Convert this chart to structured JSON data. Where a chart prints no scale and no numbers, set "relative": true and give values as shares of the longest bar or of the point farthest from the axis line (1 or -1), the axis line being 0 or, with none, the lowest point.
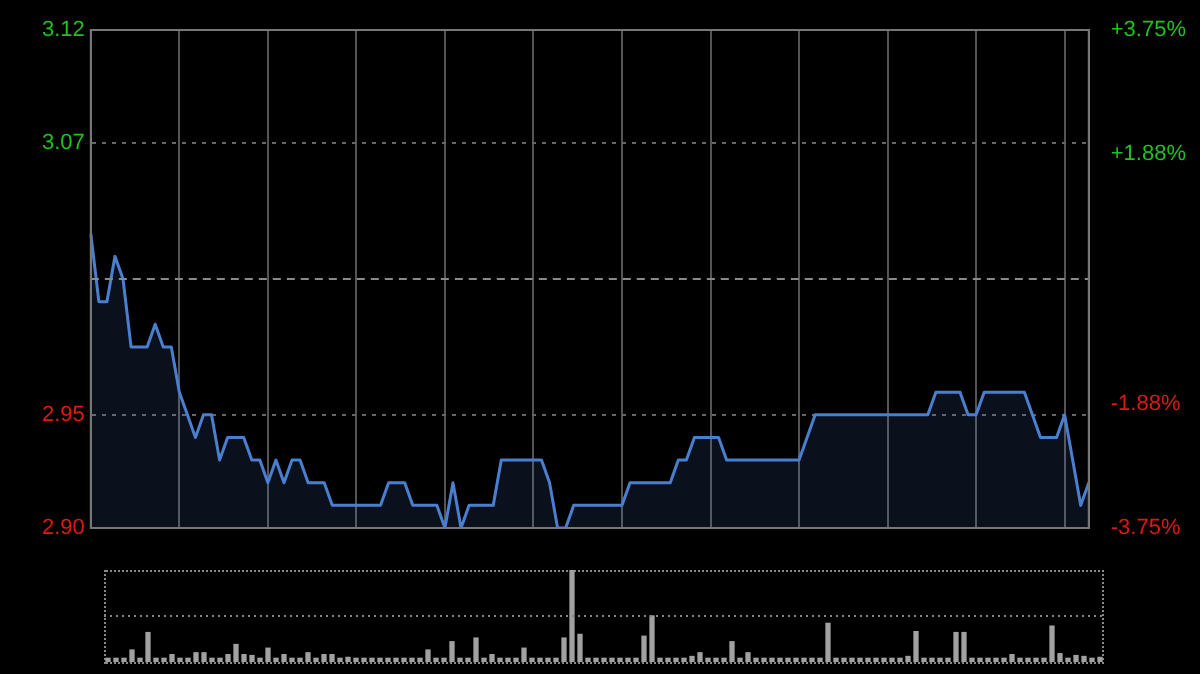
{
  "chart_data": [
    {
      "type": "area",
      "categories": [
        null,
        null,
        null,
        null,
        null,
        null,
        null,
        null,
        null,
        null,
        null,
        null,
        null,
        null,
        null,
        null,
        null,
        null,
        null,
        null,
        null,
        null,
        null,
        null,
        null,
        null,
        null,
        null,
        null,
        null,
        null,
        null,
        null,
        null,
        null,
        null,
        null,
        null,
        null,
        null,
        null,
        null,
        null,
        null,
        null,
        null,
        null,
        null,
        null,
        null,
        null,
        null,
        null,
        null,
        null,
        null,
        null,
        null,
        null,
        null,
        null,
        null,
        null,
        null,
        null,
        null,
        null,
        null,
        null,
        null,
        null,
        null,
        null,
        null,
        null,
        null,
        null,
        null,
        null,
        null,
        null,
        null,
        null,
        null,
        null,
        null,
        null,
        null,
        null,
        null,
        null,
        null,
        null,
        null,
        null,
        null,
        null,
        null,
        null,
        null,
        null,
        null,
        null,
        null,
        null,
        null,
        null,
        null,
        null,
        null,
        null,
        null,
        null,
        null,
        null,
        null,
        null,
        null,
        null,
        null,
        null,
        null,
        null,
        null,
        null
      ],
      "series": [
        {
          "color": "#4a7fd0",
          "values": [
            3.03,
            3.0,
            3.0,
            3.02,
            3.01,
            2.98,
            2.98,
            2.98,
            2.99,
            2.98,
            2.98,
            2.96,
            2.95,
            2.94,
            2.95,
            2.95,
            2.93,
            2.94,
            2.94,
            2.94,
            2.93,
            2.93,
            2.92,
            2.93,
            2.92,
            2.93,
            2.93,
            2.92,
            2.92,
            2.92,
            2.91,
            2.91,
            2.91,
            2.91,
            2.91,
            2.91,
            2.91,
            2.92,
            2.92,
            2.92,
            2.91,
            2.91,
            2.91,
            2.91,
            2.9,
            2.92,
            2.9,
            2.91,
            2.91,
            2.91,
            2.91,
            2.93,
            2.93,
            2.93,
            2.93,
            2.93,
            2.93,
            2.92,
            2.9,
            2.9,
            2.91,
            2.91,
            2.91,
            2.91,
            2.91,
            2.91,
            2.91,
            2.92,
            2.92,
            2.92,
            2.92,
            2.92,
            2.92,
            2.93,
            2.93,
            2.94,
            2.94,
            2.94,
            2.94,
            2.93,
            2.93,
            2.93,
            2.93,
            2.93,
            2.93,
            2.93,
            2.93,
            2.93,
            2.93,
            2.94,
            2.95,
            2.95,
            2.95,
            2.95,
            2.95,
            2.95,
            2.95,
            2.95,
            2.95,
            2.95,
            2.95,
            2.95,
            2.95,
            2.95,
            2.95,
            2.96,
            2.96,
            2.96,
            2.96,
            2.95,
            2.95,
            2.96,
            2.96,
            2.96,
            2.96,
            2.96,
            2.96,
            2.95,
            2.94,
            2.94,
            2.94,
            2.95,
            2.93,
            2.91,
            2.92
          ]
        }
      ],
      "ylim": [
        2.9,
        3.12
      ],
      "yticks": [
        {
          "value": 2.9,
          "label": "2.90"
        },
        2.95,
        3.07,
        3.12
      ],
      "y2lim": [
        -3.75,
        3.75
      ],
      "y2ticks": [
        {
          "value": -3.75,
          "label": "-3.75%"
        },
        {
          "value": -1.88,
          "label": "-1.88%"
        },
        {
          "value": 1.88,
          "label": "+1.88%"
        },
        {
          "value": 3.75,
          "label": "+3.75%"
        }
      ],
      "ref_lines": [
        {
          "axis": "y",
          "value": 3.01,
          "color": "#8a8a8a",
          "line_style": "dashed"
        }
      ],
      "grid": true,
      "legend": false,
      "marker": "none",
      "line_style": "solid"
    },
    {
      "type": "bar",
      "relative": true,
      "color": "#a0a0a0",
      "legend": false,
      "ref_lines": [
        {
          "axis": "y",
          "value": 0.5,
          "color": "#888888",
          "line_style": "dotted"
        }
      ],
      "categories": [
        null,
        null,
        null,
        null,
        null,
        null,
        null,
        null,
        null,
        null,
        null,
        null,
        null,
        null,
        null,
        null,
        null,
        null,
        null,
        null,
        null,
        null,
        null,
        null,
        null,
        null,
        null,
        null,
        null,
        null,
        null,
        null,
        null,
        null,
        null,
        null,
        null,
        null,
        null,
        null,
        null,
        null,
        null,
        null,
        null,
        null,
        null,
        null,
        null,
        null,
        null,
        null,
        null,
        null,
        null,
        null,
        null,
        null,
        null,
        null,
        null,
        null,
        null,
        null,
        null,
        null,
        null,
        null,
        null,
        null,
        null,
        null,
        null,
        null,
        null,
        null,
        null,
        null,
        null,
        null,
        null,
        null,
        null,
        null,
        null,
        null,
        null,
        null,
        null,
        null,
        null,
        null,
        null,
        null,
        null,
        null,
        null,
        null,
        null,
        null,
        null,
        null,
        null,
        null,
        null,
        null,
        null,
        null,
        null,
        null,
        null,
        null,
        null,
        null,
        null,
        null,
        null,
        null,
        null,
        null,
        null,
        null,
        null,
        null,
        null
      ],
      "values": [
        0.04,
        0.04,
        0.04,
        0.13,
        0.04,
        0.32,
        0.04,
        0.04,
        0.08,
        0.04,
        0.04,
        0.1,
        0.1,
        0.04,
        0.04,
        0.08,
        0.19,
        0.08,
        0.07,
        0.04,
        0.15,
        0.04,
        0.08,
        0.04,
        0.04,
        0.1,
        0.04,
        0.08,
        0.08,
        0.04,
        0.05,
        0.04,
        0.04,
        0.04,
        0.04,
        0.04,
        0.04,
        0.04,
        0.04,
        0.04,
        0.13,
        0.04,
        0.04,
        0.22,
        0.04,
        0.04,
        0.26,
        0.04,
        0.08,
        0.04,
        0.04,
        0.04,
        0.15,
        0.04,
        0.04,
        0.04,
        0.04,
        0.26,
        1,
        0.3,
        0.04,
        0.04,
        0.04,
        0.04,
        0.04,
        0.04,
        0.04,
        0.28,
        0.5,
        0.04,
        0.04,
        0.04,
        0.04,
        0.06,
        0.1,
        0.04,
        0.04,
        0.04,
        0.22,
        0.04,
        0.1,
        0.04,
        0.04,
        0.04,
        0.04,
        0.04,
        0.04,
        0.04,
        0.04,
        0.04,
        0.42,
        0.04,
        0.04,
        0.04,
        0.04,
        0.04,
        0.04,
        0.04,
        0.04,
        0.04,
        0.06,
        0.33,
        0.04,
        0.04,
        0.04,
        0.04,
        0.32,
        0.32,
        0.04,
        0.04,
        0.04,
        0.04,
        0.04,
        0.08,
        0.04,
        0.04,
        0.04,
        0.04,
        0.39,
        0.09,
        0.04,
        0.07,
        0.06,
        0.04,
        0.05
      ]
    }
  ]
}
